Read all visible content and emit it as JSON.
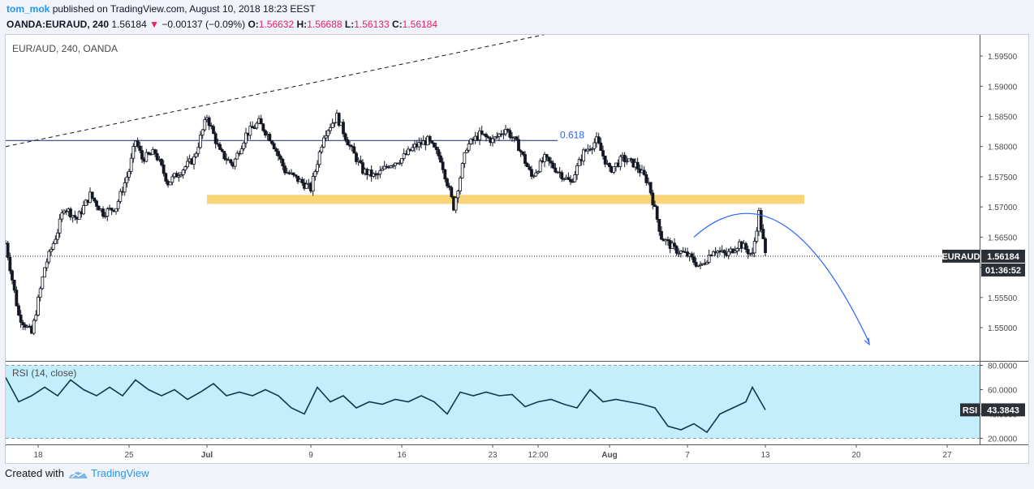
{
  "header": {
    "author": "tom_mok",
    "published_text": "published on TradingView.com, August 10, 2018 18:23 EEST",
    "symbol": "OANDA:EURAUD, 240",
    "last": "1.56184",
    "change": "−0.00137 (−0.09%)",
    "open_label": "O:",
    "open": "1.56632",
    "high_label": "H:",
    "high": "1.56688",
    "low_label": "L:",
    "low": "1.56133",
    "close_label": "C:",
    "close": "1.56184"
  },
  "footer": {
    "created_with": "Created with",
    "brand": "TradingView"
  },
  "colors": {
    "up": "#131722",
    "zone": "#f9d57a",
    "rsi_bg": "#c4eefc",
    "projection": "#2962ff",
    "fib": "#1a237e"
  },
  "chart_data": [
    {
      "type": "candlestick",
      "title": "EUR/AUD, 240, OANDA",
      "ylim": [
        1.5445,
        1.5985
      ],
      "y_ticks": [
        "1.59500",
        "1.59000",
        "1.58500",
        "1.58000",
        "1.57500",
        "1.57000",
        "1.56500",
        "1.56000",
        "1.55500",
        "1.55000"
      ],
      "x_ticks": [
        {
          "label": "18",
          "x": 0
        },
        {
          "label": "25",
          "x": 7
        },
        {
          "label": "Jul",
          "x": 13
        },
        {
          "label": "9",
          "x": 21
        },
        {
          "label": "16",
          "x": 28
        },
        {
          "label": "23",
          "x": 35
        },
        {
          "label": "12:00",
          "x": 38.5
        },
        {
          "label": "Aug",
          "x": 44
        },
        {
          "label": "7",
          "x": 50
        },
        {
          "label": "13",
          "x": 56
        },
        {
          "label": "20",
          "x": 63
        },
        {
          "label": "27",
          "x": 70
        }
      ],
      "xlim": [
        -2.5,
        72.5
      ],
      "price_path": [
        [
          -2.5,
          1.564
        ],
        [
          -1.5,
          1.552
        ],
        [
          -0.5,
          1.549
        ],
        [
          0.5,
          1.56
        ],
        [
          1.5,
          1.566
        ],
        [
          2.0,
          1.57
        ],
        [
          3.0,
          1.568
        ],
        [
          4.0,
          1.572
        ],
        [
          5.0,
          1.569
        ],
        [
          6.0,
          1.57
        ],
        [
          7.0,
          1.576
        ],
        [
          7.5,
          1.581
        ],
        [
          8.0,
          1.578
        ],
        [
          9.0,
          1.579
        ],
        [
          10.0,
          1.574
        ],
        [
          11.0,
          1.576
        ],
        [
          12.0,
          1.578
        ],
        [
          13.0,
          1.585
        ],
        [
          14.0,
          1.579
        ],
        [
          15.0,
          1.577
        ],
        [
          16.0,
          1.582
        ],
        [
          17.0,
          1.584
        ],
        [
          18.0,
          1.581
        ],
        [
          19.0,
          1.576
        ],
        [
          20.0,
          1.5745
        ],
        [
          21.0,
          1.573
        ],
        [
          22.0,
          1.582
        ],
        [
          23.0,
          1.585
        ],
        [
          24.0,
          1.58
        ],
        [
          25.0,
          1.576
        ],
        [
          26.0,
          1.575
        ],
        [
          27.0,
          1.577
        ],
        [
          28.0,
          1.578
        ],
        [
          29.0,
          1.58
        ],
        [
          30.0,
          1.581
        ],
        [
          31.0,
          1.578
        ],
        [
          32.0,
          1.57
        ],
        [
          33.0,
          1.58
        ],
        [
          34.0,
          1.582
        ],
        [
          35.0,
          1.581
        ],
        [
          36.0,
          1.583
        ],
        [
          37.0,
          1.58
        ],
        [
          38.0,
          1.575
        ],
        [
          39.0,
          1.578
        ],
        [
          40.0,
          1.576
        ],
        [
          41.0,
          1.574
        ],
        [
          42.0,
          1.579
        ],
        [
          43.0,
          1.581
        ],
        [
          44.0,
          1.576
        ],
        [
          45.0,
          1.578
        ],
        [
          46.0,
          1.577
        ],
        [
          47.0,
          1.574
        ],
        [
          48.0,
          1.565
        ],
        [
          49.0,
          1.563
        ],
        [
          50.0,
          1.562
        ],
        [
          51.0,
          1.56
        ],
        [
          52.0,
          1.563
        ],
        [
          53.0,
          1.562
        ],
        [
          54.0,
          1.564
        ],
        [
          55.0,
          1.562
        ],
        [
          55.5,
          1.569
        ],
        [
          56.0,
          1.562
        ]
      ],
      "fib_level": {
        "label": "0.618",
        "price": 1.581,
        "x_start": -2.5,
        "x_end": 40.0
      },
      "support_zone": {
        "price_low": 1.5705,
        "price_high": 1.572,
        "x_start": 13.0,
        "x_end": 59.0
      },
      "trendline": {
        "points": [
          [
            -2.5,
            1.58
          ],
          [
            40.0,
            1.599
          ]
        ],
        "style": "dashed"
      },
      "projection_arc": {
        "points": [
          [
            50.5,
            1.565
          ],
          [
            55.0,
            1.5703
          ],
          [
            59.5,
            1.56
          ],
          [
            64.0,
            1.5475
          ]
        ]
      },
      "current_price": {
        "label": "EURAUD",
        "value": "1.56184",
        "price": 1.56184,
        "countdown": "01:36:52"
      }
    },
    {
      "type": "line",
      "title": "RSI (14, close)",
      "ylim": [
        15,
        83
      ],
      "y_ticks": [
        "80.0000",
        "60.0000",
        "40.0000",
        "20.0000"
      ],
      "bands": [
        20,
        80
      ],
      "rsi_path": [
        [
          -2.5,
          70
        ],
        [
          -1.5,
          50
        ],
        [
          -0.5,
          55
        ],
        [
          0.5,
          62
        ],
        [
          1.5,
          55
        ],
        [
          2.5,
          68
        ],
        [
          3.5,
          60
        ],
        [
          4.5,
          55
        ],
        [
          5.5,
          62
        ],
        [
          6.5,
          55
        ],
        [
          7.5,
          68
        ],
        [
          8.5,
          60
        ],
        [
          9.5,
          55
        ],
        [
          10.5,
          60
        ],
        [
          11.5,
          52
        ],
        [
          12.5,
          58
        ],
        [
          13.5,
          65
        ],
        [
          14.5,
          55
        ],
        [
          15.5,
          58
        ],
        [
          16.5,
          55
        ],
        [
          17.5,
          60
        ],
        [
          18.5,
          55
        ],
        [
          19.5,
          45
        ],
        [
          20.5,
          40
        ],
        [
          21.5,
          62
        ],
        [
          22.5,
          50
        ],
        [
          23.5,
          55
        ],
        [
          24.5,
          45
        ],
        [
          25.5,
          50
        ],
        [
          26.5,
          48
        ],
        [
          27.5,
          52
        ],
        [
          28.5,
          50
        ],
        [
          29.5,
          55
        ],
        [
          30.5,
          50
        ],
        [
          31.5,
          40
        ],
        [
          32.5,
          58
        ],
        [
          33.5,
          55
        ],
        [
          34.5,
          58
        ],
        [
          35.5,
          55
        ],
        [
          36.5,
          56
        ],
        [
          37.5,
          46
        ],
        [
          38.5,
          50
        ],
        [
          39.5,
          52
        ],
        [
          40.5,
          48
        ],
        [
          41.5,
          45
        ],
        [
          42.5,
          60
        ],
        [
          43.5,
          50
        ],
        [
          44.5,
          52
        ],
        [
          45.5,
          50
        ],
        [
          46.5,
          48
        ],
        [
          47.5,
          45
        ],
        [
          48.5,
          30
        ],
        [
          49.5,
          27
        ],
        [
          50.5,
          32
        ],
        [
          51.5,
          25
        ],
        [
          52.5,
          40
        ],
        [
          53.5,
          45
        ],
        [
          54.5,
          50
        ],
        [
          55.0,
          62
        ],
        [
          56.0,
          43.38
        ]
      ],
      "current": {
        "label": "RSI",
        "value": "43.3843"
      }
    }
  ]
}
